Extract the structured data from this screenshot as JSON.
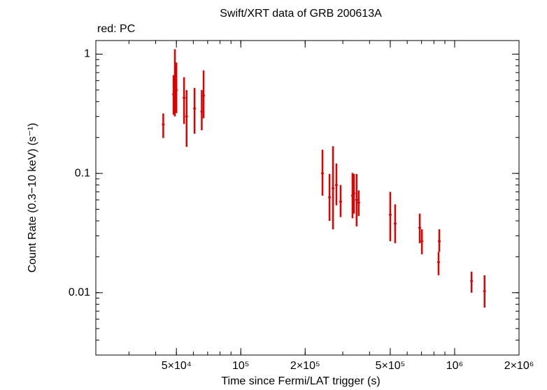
{
  "chart_data": {
    "type": "scatter",
    "title": "Swift/XRT data of GRB 200613A",
    "annotation": "red: PC",
    "x_label": "Time since Fermi/LAT trigger (s)",
    "y_label": "Count Rate (0.3−10 keV) (s⁻¹)",
    "x_log": true,
    "y_log": true,
    "color": "#e00000",
    "xlim": [
      21000,
      2000000
    ],
    "ylim": [
      0.003,
      1.3
    ],
    "xticks": [
      {
        "value": 50000,
        "label": "5×10⁴"
      },
      {
        "value": 100000,
        "label": "10⁵"
      },
      {
        "value": 200000,
        "label": "2×10⁵"
      },
      {
        "value": 500000,
        "label": "5×10⁵"
      },
      {
        "value": 1000000,
        "label": "10⁶"
      },
      {
        "value": 2000000,
        "label": "2×10⁶"
      }
    ],
    "yticks": [
      1,
      0.1,
      0.01
    ],
    "x": [
      43400,
      48500,
      49200,
      50000,
      54300,
      55800,
      60800,
      65700,
      67000,
      241000,
      260000,
      270000,
      280000,
      293000,
      333000,
      338000,
      348000,
      356000,
      500000,
      527000,
      687000,
      703000,
      841000,
      848000,
      1200000,
      1380000
    ],
    "values": [
      0.257,
      0.46,
      0.6,
      0.5,
      0.43,
      0.3,
      0.35,
      0.33,
      0.45,
      0.1,
      0.063,
      0.075,
      0.08,
      0.058,
      0.065,
      0.068,
      0.06,
      0.057,
      0.045,
      0.038,
      0.035,
      0.027,
      0.018,
      0.027,
      0.0125,
      0.0103
    ],
    "lower": [
      0.198,
      0.31,
      0.3,
      0.32,
      0.26,
      0.167,
      0.215,
      0.23,
      0.29,
      0.065,
      0.04,
      0.034,
      0.054,
      0.043,
      0.042,
      0.046,
      0.036,
      0.044,
      0.027,
      0.026,
      0.026,
      0.021,
      0.014,
      0.022,
      0.01,
      0.0075
    ],
    "upper": [
      0.318,
      0.667,
      1.1,
      0.85,
      0.64,
      0.5,
      0.52,
      0.5,
      0.73,
      0.158,
      0.099,
      0.169,
      0.121,
      0.08,
      0.101,
      0.099,
      0.099,
      0.072,
      0.07,
      0.055,
      0.046,
      0.034,
      0.022,
      0.034,
      0.015,
      0.014
    ]
  }
}
